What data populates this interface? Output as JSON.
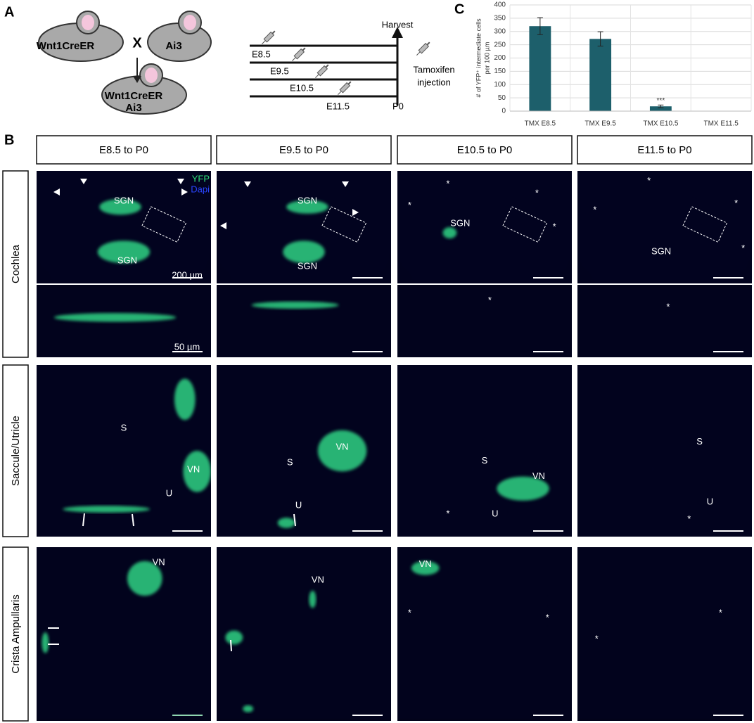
{
  "panel_a": {
    "label": "A",
    "mice": {
      "left": "Wnt1CreER",
      "cross": "X",
      "right": "Ai3",
      "offspring": [
        "Wnt1CreER",
        "Ai3"
      ]
    },
    "timeline": {
      "harvest": "Harvest",
      "stages": [
        "E8.5",
        "E9.5",
        "E10.5",
        "E11.5"
      ],
      "end": "P0",
      "injection": [
        "Tamoxifen",
        "injection"
      ]
    }
  },
  "chart_data": {
    "type": "bar",
    "label": "C",
    "y_label": [
      "# of YFP⁺ intermediate cells",
      "per 100 µm"
    ],
    "categories": [
      "TMX E8.5",
      "TMX E9.5",
      "TMX E10.5",
      "TMX E11.5"
    ],
    "values": [
      320,
      272,
      18,
      0
    ],
    "errors": [
      32,
      27,
      5,
      null
    ],
    "color": "#1d5f6b",
    "annotations": [
      {
        "x": "TMX E10.5",
        "text": "***"
      }
    ],
    "ylim": [
      0,
      400
    ],
    "yticks": [
      0,
      50,
      100,
      150,
      200,
      250,
      300,
      350,
      400
    ],
    "grid": true
  },
  "panel_b": {
    "label": "B",
    "columns": [
      "E8.5 to P0",
      "E9.5 to P0",
      "E10.5 to P0",
      "E11.5 to P0"
    ],
    "rows": [
      "Cochlea",
      "Saccule/Utricle",
      "Crista Ampullaris"
    ],
    "channels": [
      "YFP",
      "Dapi"
    ],
    "scale_bars": [
      "200 µm",
      "50 µm"
    ],
    "cochlea_overview": [
      [
        "SGN",
        "SGN"
      ],
      [
        "SGN",
        "SGN"
      ],
      [
        "*",
        "*",
        "*",
        "SGN",
        "*"
      ],
      [
        "*",
        "*",
        "*",
        "SGN",
        "*"
      ]
    ],
    "cochlea_detail": [
      [],
      [],
      [
        "*"
      ],
      [
        "*"
      ]
    ],
    "saccule_utricle": [
      [
        "S",
        "VN",
        "U"
      ],
      [
        "VN",
        "S",
        "U"
      ],
      [
        "S",
        "VN",
        "*",
        "U"
      ],
      [
        "S",
        "U",
        "*"
      ]
    ],
    "crista_ampullaris": [
      [
        "VN"
      ],
      [
        "VN"
      ],
      [
        "VN",
        "*",
        "*"
      ],
      [
        "*",
        "*"
      ]
    ]
  }
}
